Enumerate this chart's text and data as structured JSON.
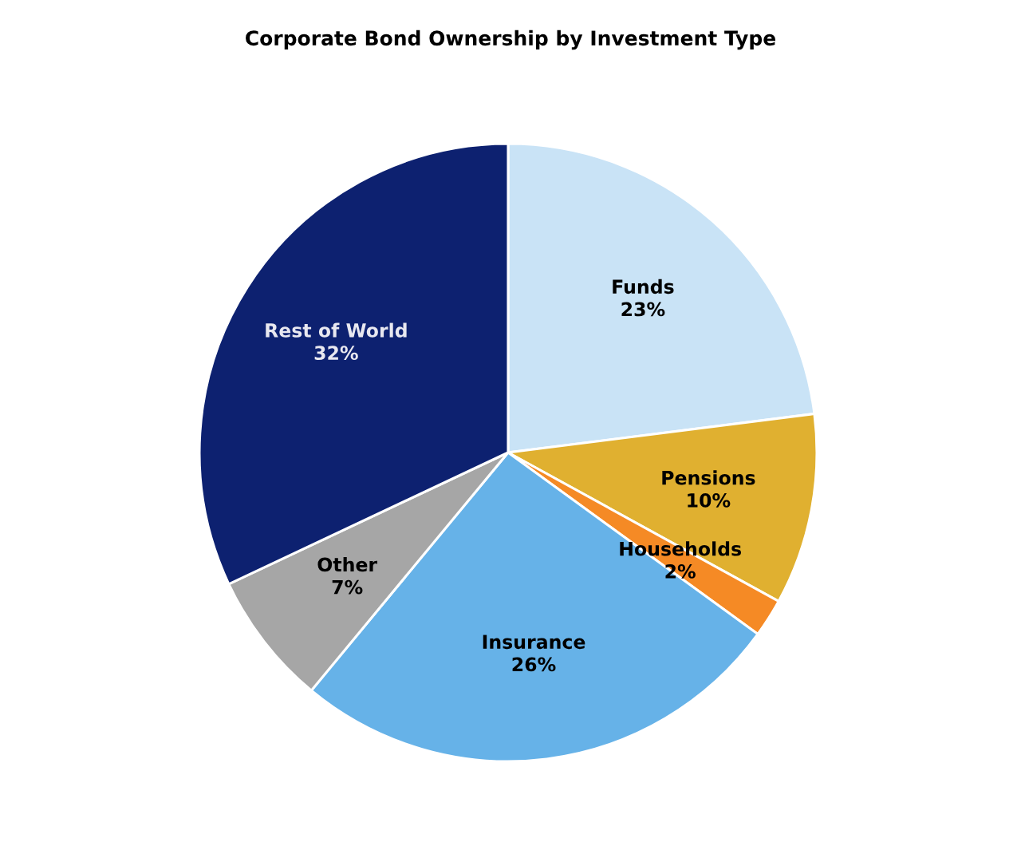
{
  "chart_data": {
    "type": "pie",
    "title": "Corporate Bond Ownership by Investment Type",
    "categories": [
      "Funds",
      "Pensions",
      "Households",
      "Insurance",
      "Other",
      "Rest of World"
    ],
    "values": [
      23,
      10,
      2,
      26,
      7,
      32
    ],
    "colors": [
      "#c9e3f6",
      "#e0b030",
      "#f58a25",
      "#66b2e8",
      "#a6a6a6",
      "#0d2170"
    ],
    "value_labels": [
      "23%",
      "10%",
      "2%",
      "26%",
      "7%",
      "32%"
    ]
  }
}
